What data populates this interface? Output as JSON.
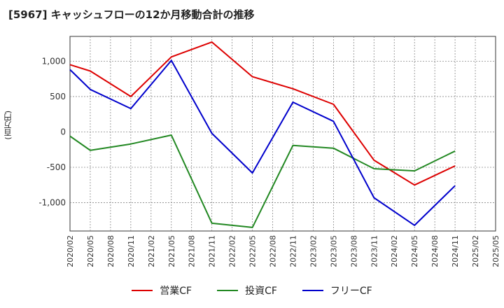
{
  "chart_data": {
    "type": "line",
    "title": "[5967]  キャッシュフローの12か月移動合計の推移",
    "ylabel": "(百万円)",
    "xlabel": "",
    "ylim": [
      -1400,
      1350
    ],
    "yticks": [
      -1000,
      -500,
      0,
      500,
      1000
    ],
    "ytick_labels": [
      "-1,000",
      "-500",
      "0",
      "500",
      "1,000"
    ],
    "categories": [
      "2020/02",
      "2020/05",
      "2020/08",
      "2020/11",
      "2021/02",
      "2021/05",
      "2021/08",
      "2021/11",
      "2022/02",
      "2022/05",
      "2022/08",
      "2022/11",
      "2023/02",
      "2023/05",
      "2023/08",
      "2023/11",
      "2024/02",
      "2024/05",
      "2024/08",
      "2024/11",
      "2025/02",
      "2025/05"
    ],
    "grid": true,
    "legend_position": "bottom",
    "series": [
      {
        "name": "営業CF",
        "color": "#dd0000",
        "values": [
          950,
          860,
          null,
          500,
          null,
          1060,
          null,
          1270,
          null,
          780,
          null,
          610,
          null,
          390,
          null,
          -400,
          null,
          -750,
          null,
          -480,
          null,
          null
        ]
      },
      {
        "name": "投資CF",
        "color": "#228822",
        "values": [
          -60,
          -260,
          null,
          -170,
          null,
          -45,
          null,
          -1290,
          null,
          -1350,
          null,
          -190,
          null,
          -230,
          null,
          -520,
          null,
          -550,
          null,
          -270,
          null,
          null
        ]
      },
      {
        "name": "フリーCF",
        "color": "#0000cc",
        "values": [
          880,
          600,
          null,
          330,
          null,
          1010,
          null,
          -20,
          null,
          -580,
          null,
          420,
          null,
          150,
          null,
          -930,
          null,
          -1320,
          null,
          -760,
          null,
          null
        ]
      }
    ]
  }
}
